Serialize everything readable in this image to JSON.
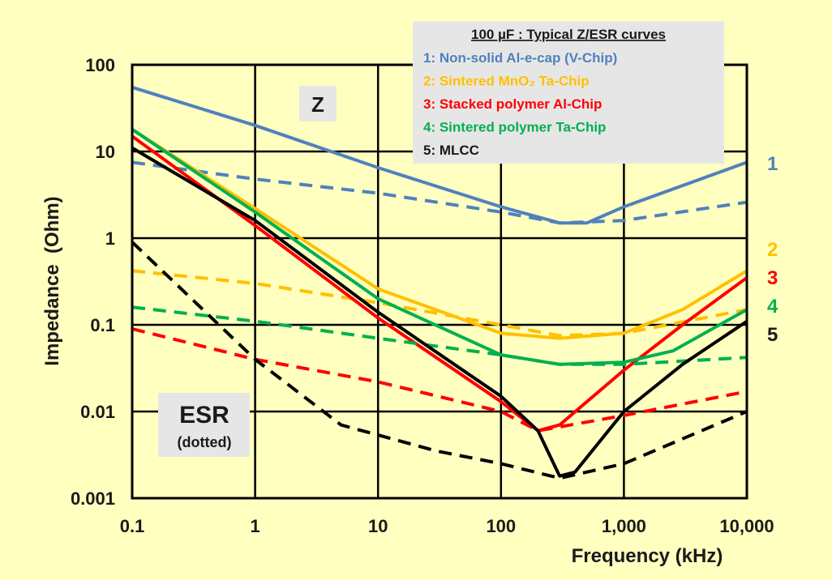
{
  "chart_data": {
    "type": "line",
    "title": "100 µF : Typical Z/ESR curves",
    "xlabel": "Frequency (kHz)",
    "ylabel": "Impedance  (Ohm)",
    "x_scale": "log",
    "y_scale": "log",
    "xlim": [
      0.1,
      10000
    ],
    "ylim": [
      0.001,
      100
    ],
    "x_ticks": [
      0.1,
      1,
      10,
      100,
      1000,
      10000
    ],
    "x_tick_labels": [
      "0.1",
      "1",
      "10",
      "100",
      "1,000",
      "10,000"
    ],
    "y_ticks": [
      0.001,
      0.01,
      0.1,
      1,
      10,
      100
    ],
    "y_tick_labels": [
      "0.001",
      "0.01",
      "0.1",
      "1",
      "10",
      "100"
    ],
    "grid": true,
    "annotations": {
      "z_label": "Z",
      "esr_label": "ESR",
      "esr_sub": "(dotted)"
    },
    "series": [
      {
        "name": "Non-solid  Al-e-cap (V-Chip)",
        "legend_label": "1: Non-solid  Al-e-cap (V-Chip)",
        "end_label": "1",
        "color": "#4F81BD",
        "z": [
          [
            0.1,
            55
          ],
          [
            1,
            20
          ],
          [
            10,
            6.5
          ],
          [
            100,
            2.3
          ],
          [
            300,
            1.5
          ],
          [
            500,
            1.5
          ],
          [
            1000,
            2.3
          ],
          [
            10000,
            7.5
          ]
        ],
        "esr": [
          [
            0.1,
            7.5
          ],
          [
            1,
            4.8
          ],
          [
            10,
            3.3
          ],
          [
            100,
            2.0
          ],
          [
            300,
            1.5
          ],
          [
            1000,
            1.6
          ],
          [
            10000,
            2.6
          ]
        ]
      },
      {
        "name": "Sintered MnO2 Ta-Chip",
        "legend_label": "2: Sintered MnO₂ Ta-Chip",
        "end_label": "2",
        "color": "#FFC000",
        "z": [
          [
            0.1,
            18
          ],
          [
            1,
            2.2
          ],
          [
            10,
            0.26
          ],
          [
            100,
            0.08
          ],
          [
            300,
            0.07
          ],
          [
            1000,
            0.08
          ],
          [
            3000,
            0.15
          ],
          [
            10000,
            0.42
          ]
        ],
        "esr": [
          [
            0.1,
            0.42
          ],
          [
            1,
            0.3
          ],
          [
            10,
            0.18
          ],
          [
            100,
            0.1
          ],
          [
            300,
            0.075
          ],
          [
            1000,
            0.08
          ],
          [
            10000,
            0.15
          ]
        ]
      },
      {
        "name": "Stacked polymer Al-Chip",
        "legend_label": "3: Stacked polymer Al-Chip",
        "end_label": "3",
        "color": "#FF0000",
        "z": [
          [
            0.1,
            15
          ],
          [
            1,
            1.4
          ],
          [
            10,
            0.12
          ],
          [
            100,
            0.013
          ],
          [
            200,
            0.006
          ],
          [
            300,
            0.007
          ],
          [
            1000,
            0.03
          ],
          [
            3000,
            0.1
          ],
          [
            10000,
            0.35
          ]
        ],
        "esr": [
          [
            0.1,
            0.09
          ],
          [
            1,
            0.04
          ],
          [
            10,
            0.022
          ],
          [
            100,
            0.01
          ],
          [
            200,
            0.006
          ],
          [
            1000,
            0.009
          ],
          [
            10000,
            0.017
          ]
        ]
      },
      {
        "name": "Sintered polymer Ta-Chip",
        "legend_label": "4: Sintered polymer Ta-Chip",
        "end_label": "4",
        "color": "#00B050",
        "z": [
          [
            0.1,
            18
          ],
          [
            1,
            2.0
          ],
          [
            10,
            0.2
          ],
          [
            100,
            0.045
          ],
          [
            300,
            0.035
          ],
          [
            1000,
            0.037
          ],
          [
            2500,
            0.05
          ],
          [
            10000,
            0.15
          ]
        ],
        "esr": [
          [
            0.1,
            0.16
          ],
          [
            1,
            0.11
          ],
          [
            10,
            0.07
          ],
          [
            100,
            0.045
          ],
          [
            300,
            0.035
          ],
          [
            1000,
            0.035
          ],
          [
            10000,
            0.042
          ]
        ]
      },
      {
        "name": "MLCC",
        "legend_label": "5: MLCC",
        "end_label": "5",
        "color": "#000000",
        "z": [
          [
            0.1,
            11
          ],
          [
            1,
            1.6
          ],
          [
            10,
            0.14
          ],
          [
            100,
            0.015
          ],
          [
            200,
            0.006
          ],
          [
            300,
            0.0018
          ],
          [
            400,
            0.002
          ],
          [
            1000,
            0.01
          ],
          [
            3000,
            0.035
          ],
          [
            10000,
            0.11
          ]
        ],
        "esr": [
          [
            0.1,
            0.9
          ],
          [
            1,
            0.04
          ],
          [
            5,
            0.007
          ],
          [
            30,
            0.0035
          ],
          [
            100,
            0.0025
          ],
          [
            300,
            0.0017
          ],
          [
            1000,
            0.0025
          ],
          [
            10000,
            0.01
          ]
        ]
      }
    ]
  }
}
